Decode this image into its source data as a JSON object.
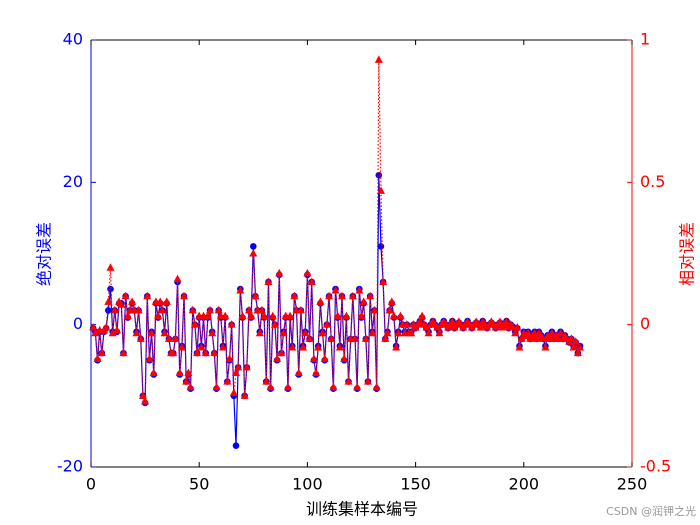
{
  "chart_data": {
    "type": "line",
    "xlabel": "训练集样本编号",
    "ylabel": "绝对误差",
    "y2label": "相对误差",
    "watermark": "CSDN @润钾之光",
    "xlim": [
      0,
      250
    ],
    "xticks": [
      0,
      50,
      100,
      150,
      200,
      250
    ],
    "ylim": [
      -20,
      40
    ],
    "yticks": [
      -20,
      0,
      20,
      40
    ],
    "y2lim": [
      -0.5,
      1
    ],
    "y2ticks": [
      -0.5,
      0,
      0.5,
      1
    ],
    "left_axis_color": "#0000ff",
    "right_axis_color": "#ff0000",
    "x": [
      1,
      2,
      3,
      4,
      5,
      6,
      7,
      8,
      9,
      10,
      11,
      12,
      13,
      14,
      15,
      16,
      17,
      18,
      19,
      20,
      21,
      22,
      23,
      24,
      25,
      26,
      27,
      28,
      29,
      30,
      31,
      32,
      33,
      34,
      35,
      36,
      37,
      38,
      39,
      40,
      41,
      42,
      43,
      44,
      45,
      46,
      47,
      48,
      49,
      50,
      51,
      52,
      53,
      54,
      55,
      56,
      57,
      58,
      59,
      60,
      61,
      62,
      63,
      64,
      65,
      66,
      67,
      68,
      69,
      70,
      71,
      72,
      73,
      74,
      75,
      76,
      77,
      78,
      79,
      80,
      81,
      82,
      83,
      84,
      85,
      86,
      87,
      88,
      89,
      90,
      91,
      92,
      93,
      94,
      95,
      96,
      97,
      98,
      99,
      100,
      101,
      102,
      103,
      104,
      105,
      106,
      107,
      108,
      109,
      110,
      111,
      112,
      113,
      114,
      115,
      116,
      117,
      118,
      119,
      120,
      121,
      122,
      123,
      124,
      125,
      126,
      127,
      128,
      129,
      130,
      131,
      132,
      133,
      134,
      135,
      136,
      137,
      138,
      139,
      140,
      141,
      142,
      143,
      144,
      145,
      146,
      147,
      148,
      149,
      150,
      151,
      152,
      153,
      154,
      155,
      156,
      157,
      158,
      159,
      160,
      161,
      162,
      163,
      164,
      165,
      166,
      167,
      168,
      169,
      170,
      171,
      172,
      173,
      174,
      175,
      176,
      177,
      178,
      179,
      180,
      181,
      182,
      183,
      184,
      185,
      186,
      187,
      188,
      189,
      190,
      191,
      192,
      193,
      194,
      195,
      196,
      197,
      198,
      199,
      200,
      201,
      202,
      203,
      204,
      205,
      206,
      207,
      208,
      209,
      210,
      211,
      212,
      213,
      214,
      215,
      216,
      217,
      218,
      219,
      220,
      221,
      222,
      223,
      224,
      225,
      226
    ],
    "series": [
      {
        "name": "绝对误差",
        "color": "#0000ff",
        "marker": "circle",
        "dash": false,
        "axis": "y",
        "values": [
          -0.5,
          -1,
          -5,
          -1,
          -4,
          -1,
          -0.5,
          2,
          5,
          -1,
          2,
          -1,
          3,
          3,
          -4,
          4,
          1,
          2,
          3,
          2,
          -1,
          2,
          -2,
          -10,
          -11,
          4,
          -5,
          -1,
          -7,
          3,
          1,
          3,
          2,
          -1,
          3,
          -2,
          -4,
          -4,
          -2,
          6,
          -7,
          -3,
          4,
          -8,
          -7,
          -9,
          2,
          0,
          -4,
          1,
          -3,
          1,
          -4,
          1,
          2,
          -1,
          -4,
          -9,
          2,
          1,
          -3,
          1,
          -8,
          -5,
          0,
          -10,
          -17,
          -6,
          5,
          1,
          -10,
          -6,
          2,
          1,
          11,
          4,
          2,
          -1,
          2,
          1,
          -8,
          6,
          -9,
          1,
          0,
          -5,
          7,
          -4,
          -1,
          1,
          -9,
          1,
          -3,
          4,
          2,
          -7,
          2,
          -3,
          -1,
          7,
          -2,
          6,
          -5,
          -7,
          -3,
          3,
          -1,
          -5,
          0,
          4,
          -2,
          -9,
          5,
          1,
          -3,
          4,
          -5,
          1,
          -8,
          -2,
          4,
          -2,
          -9,
          5,
          1,
          3,
          -2,
          -8,
          4,
          -1,
          2,
          -9,
          21,
          11,
          6,
          -2,
          -1,
          2,
          3,
          1,
          -3,
          -1,
          1,
          0,
          -1,
          0,
          -1,
          -1,
          0,
          -0.5,
          0,
          0.5,
          1,
          0,
          -0.5,
          -1,
          0,
          0.5,
          0,
          -0.5,
          -1,
          0,
          0.5,
          0,
          -0.5,
          0,
          0.5,
          -0.5,
          0,
          0.3,
          0,
          -0.5,
          0,
          0.5,
          0,
          -0.5,
          0,
          0.3,
          0,
          -0.3,
          0.5,
          0,
          -0.5,
          0,
          0.3,
          0,
          -0.5,
          0,
          0.3,
          -0.3,
          0,
          0.5,
          -0.5,
          0,
          -0.3,
          -1,
          -0.5,
          -3,
          -2,
          -1,
          -1.5,
          -1,
          -2,
          -1.5,
          -1,
          -2,
          -1,
          -1.5,
          -2,
          -3,
          -1.5,
          -2,
          -1,
          -2,
          -1.5,
          -2,
          -1,
          -2,
          -1.5,
          -2,
          -2.5,
          -2,
          -3,
          -2.5,
          -4,
          -3
        ]
      },
      {
        "name": "相对误差",
        "color": "#ff0000",
        "marker": "triangle",
        "dash": true,
        "axis": "y2",
        "values": [
          -0.01,
          -0.03,
          -0.12,
          -0.02,
          -0.1,
          -0.02,
          -0.01,
          0.08,
          0.2,
          -0.03,
          0.05,
          -0.02,
          0.08,
          0.07,
          -0.1,
          0.1,
          0.03,
          0.05,
          0.08,
          0.05,
          -0.03,
          0.05,
          -0.05,
          -0.25,
          -0.27,
          0.1,
          -0.12,
          -0.03,
          -0.17,
          0.08,
          0.03,
          0.08,
          0.05,
          -0.03,
          0.08,
          -0.05,
          -0.1,
          -0.1,
          -0.05,
          0.16,
          -0.17,
          -0.08,
          0.1,
          -0.2,
          -0.17,
          -0.22,
          0.05,
          0,
          -0.1,
          0.03,
          -0.08,
          0.03,
          -0.1,
          0.03,
          0.05,
          -0.03,
          -0.1,
          -0.22,
          0.05,
          0.03,
          -0.08,
          0.03,
          -0.2,
          -0.12,
          0,
          -0.24,
          -0.17,
          -0.15,
          0.12,
          0.03,
          -0.25,
          -0.15,
          0.05,
          0.03,
          0.25,
          0.1,
          0.05,
          -0.03,
          0.05,
          0.03,
          -0.2,
          0.15,
          -0.22,
          0.03,
          0,
          -0.12,
          0.18,
          -0.1,
          -0.03,
          0.03,
          -0.22,
          0.03,
          -0.08,
          0.1,
          0.05,
          -0.17,
          0.05,
          -0.08,
          -0.03,
          0.18,
          -0.05,
          0.15,
          -0.12,
          -0.17,
          -0.08,
          0.08,
          -0.03,
          -0.12,
          0,
          0.1,
          -0.05,
          -0.22,
          0.12,
          0.03,
          -0.08,
          0.1,
          -0.12,
          0.03,
          -0.2,
          -0.05,
          0.1,
          -0.05,
          -0.22,
          0.12,
          0.03,
          0.08,
          -0.05,
          -0.2,
          0.1,
          -0.03,
          0.05,
          -0.22,
          0.93,
          0.47,
          0.15,
          -0.05,
          -0.03,
          0.05,
          0.08,
          0.03,
          -0.08,
          -0.03,
          0.03,
          0,
          -0.03,
          0,
          -0.03,
          -0.03,
          0,
          -0.01,
          0,
          0.01,
          0.03,
          0,
          -0.01,
          -0.03,
          0,
          0.01,
          0,
          -0.01,
          -0.03,
          0,
          0.01,
          0,
          -0.01,
          0,
          0.01,
          -0.01,
          0,
          0.01,
          0,
          -0.01,
          0,
          0.01,
          0,
          -0.01,
          0,
          0.01,
          0,
          -0.01,
          0.01,
          0,
          -0.01,
          0,
          0.01,
          0,
          -0.01,
          0,
          0.01,
          -0.01,
          0,
          0.01,
          -0.01,
          0,
          -0.01,
          -0.03,
          -0.01,
          -0.08,
          -0.05,
          -0.03,
          -0.04,
          -0.03,
          -0.05,
          -0.04,
          -0.03,
          -0.05,
          -0.03,
          -0.04,
          -0.05,
          -0.08,
          -0.04,
          -0.05,
          -0.03,
          -0.05,
          -0.04,
          -0.05,
          -0.03,
          -0.05,
          -0.04,
          -0.05,
          -0.06,
          -0.05,
          -0.08,
          -0.06,
          -0.1,
          -0.08
        ]
      }
    ]
  }
}
